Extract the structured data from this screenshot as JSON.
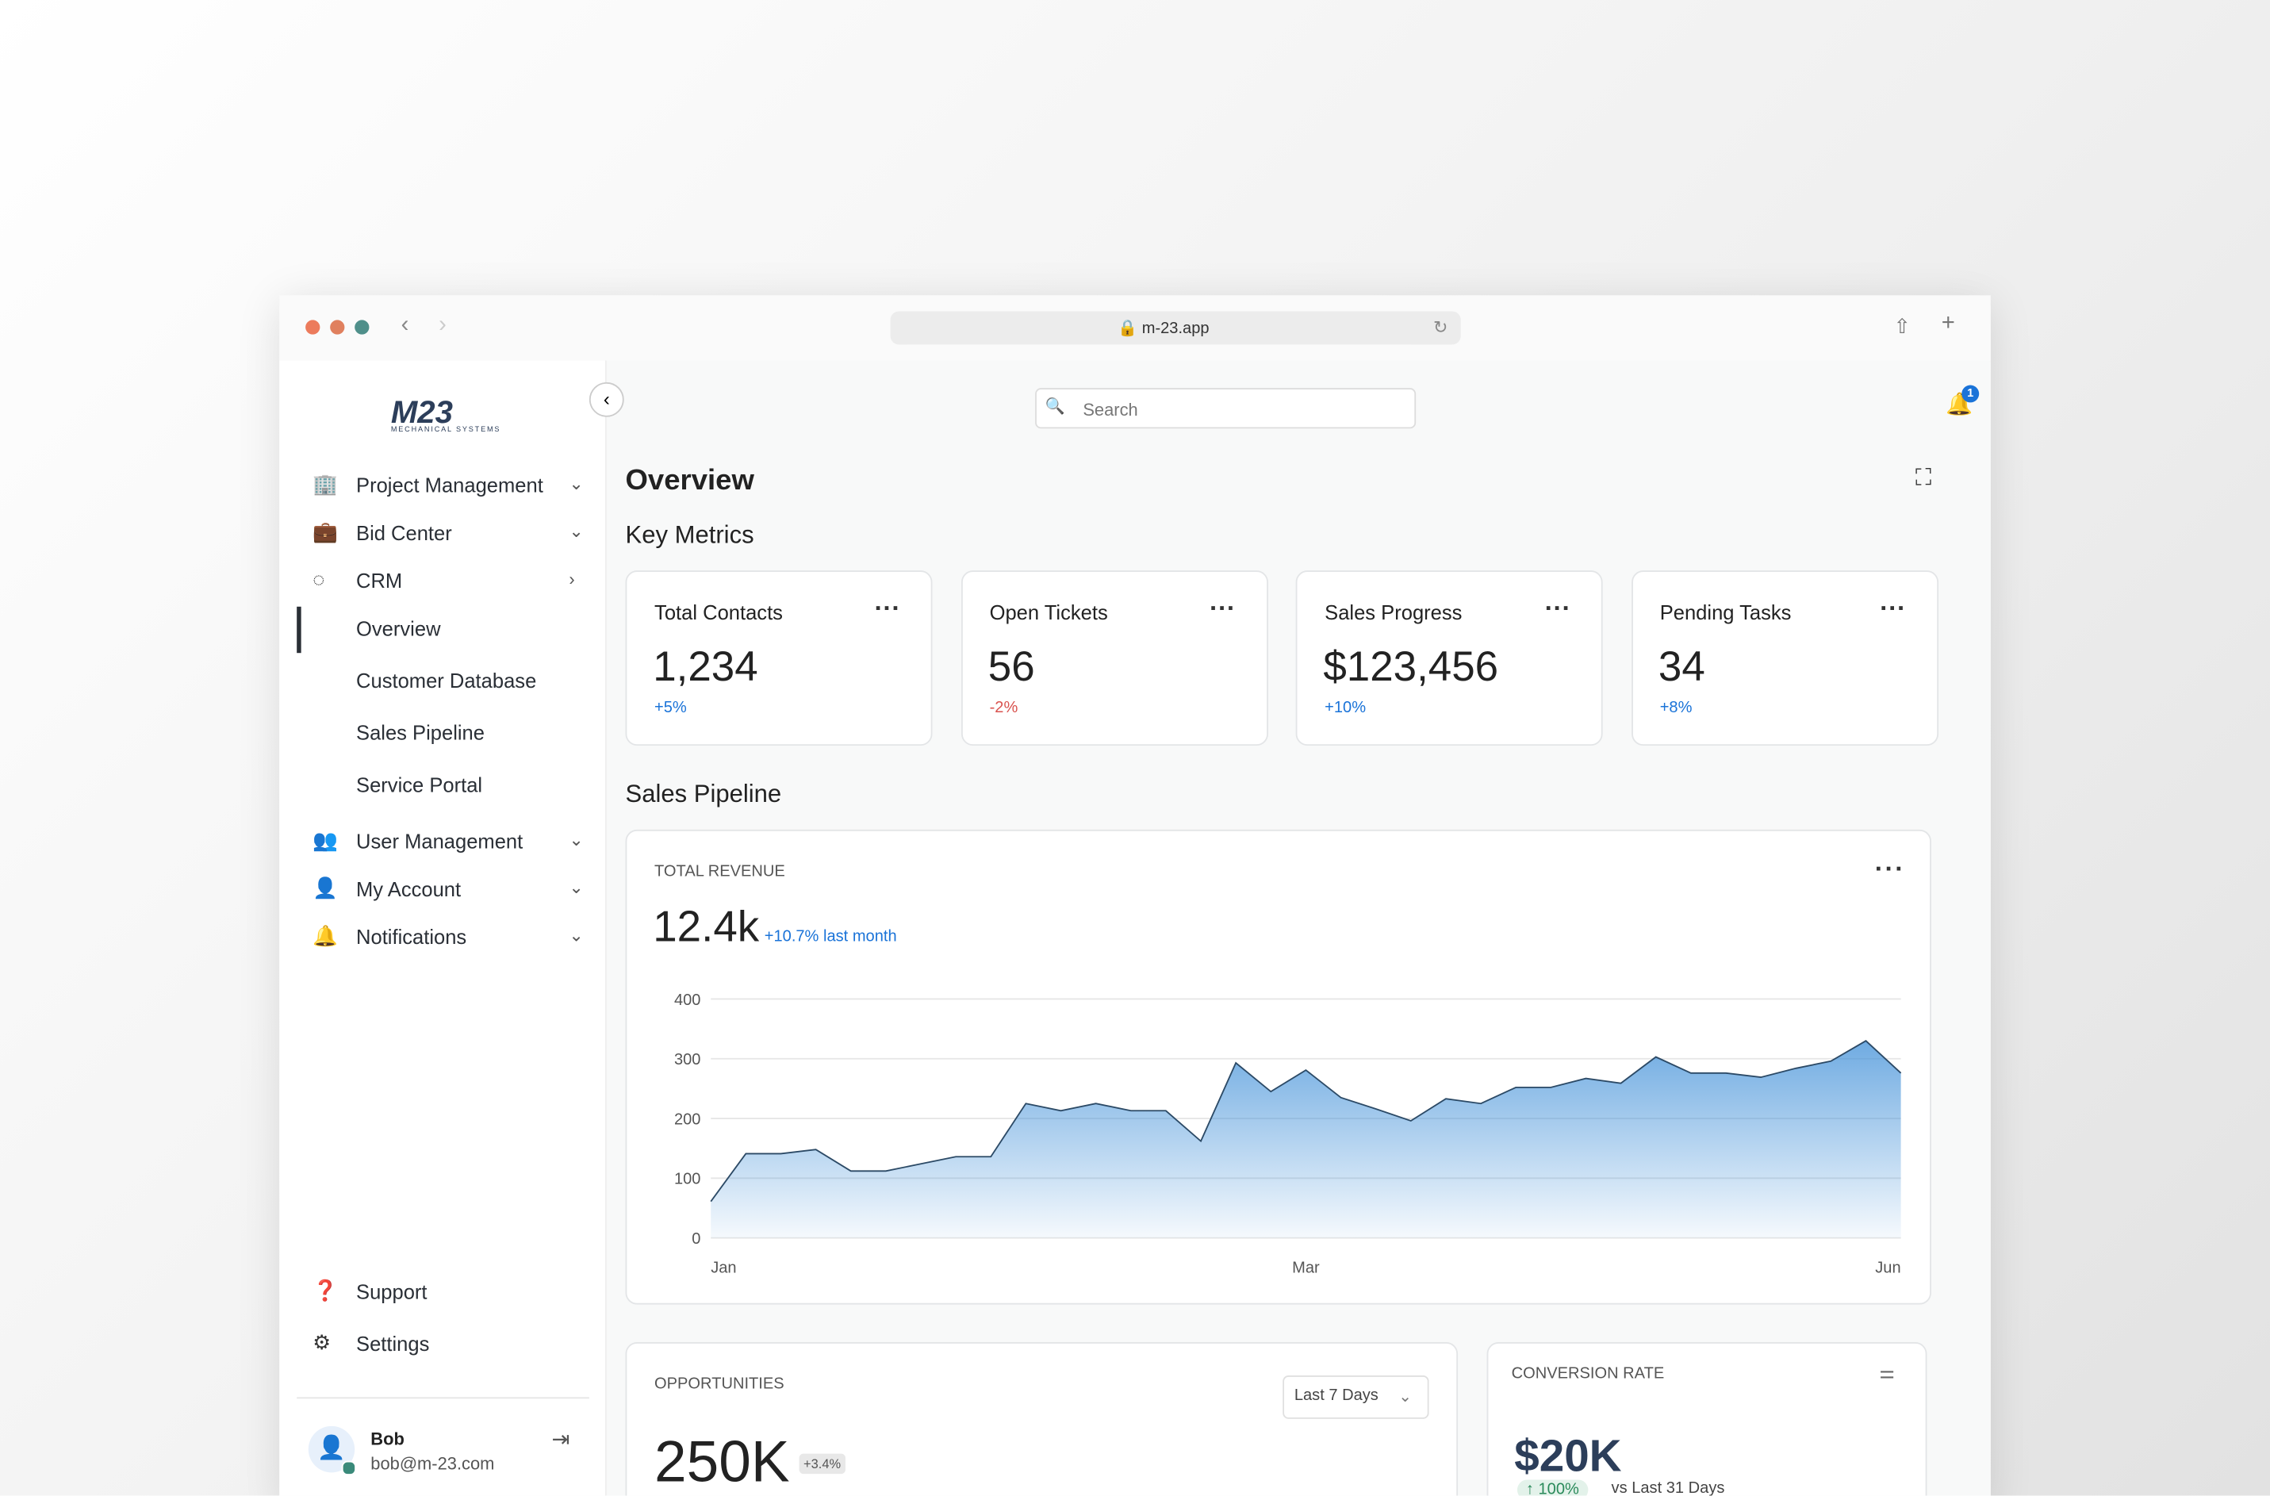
{
  "browser": {
    "url": "m-23.app"
  },
  "sidebar": {
    "logo": "M23",
    "logo_subtitle": "MECHANICAL SYSTEMS",
    "nav": [
      "Project Management",
      "Bid Center",
      "CRM"
    ],
    "crm_sub": [
      "Overview",
      "Customer Database",
      "Sales Pipeline",
      "Service Portal"
    ],
    "nav2": [
      "User Management",
      "My Account",
      "Notifications"
    ],
    "footer_nav": [
      "Support",
      "Settings"
    ],
    "user": {
      "name": "Bob",
      "email": "bob@m-23.com"
    }
  },
  "header": {
    "search_placeholder": "Search",
    "notification_count": "1"
  },
  "page": {
    "title": "Overview",
    "key_metrics_title": "Key Metrics",
    "metrics": [
      {
        "label": "Total Contacts",
        "value": "1,234",
        "change": "+5%"
      },
      {
        "label": "Open Tickets",
        "value": "56",
        "change": "-2%"
      },
      {
        "label": "Sales Progress",
        "value": "$123,456",
        "change": "+10%"
      },
      {
        "label": "Pending Tasks",
        "value": "34",
        "change": "+8%"
      }
    ],
    "sales_pipeline_title": "Sales Pipeline"
  },
  "revenue": {
    "label": "TOTAL REVENUE",
    "value": "12.4k",
    "change": "+10.7% last month",
    "chart_data": {
      "type": "area",
      "color": "#3f8fd8",
      "grid": true,
      "ylim": [
        0,
        400
      ],
      "yticks": [
        0,
        100,
        200,
        300,
        400
      ],
      "categories": [
        "Jan",
        null,
        null,
        null,
        null,
        null,
        null,
        null,
        null,
        null,
        null,
        null,
        null,
        null,
        null,
        null,
        null,
        "Mar",
        null,
        null,
        null,
        null,
        null,
        null,
        null,
        null,
        null,
        null,
        null,
        null,
        null,
        null,
        null,
        null,
        "Jun"
      ],
      "values": [
        61,
        141,
        141,
        148,
        112,
        112,
        124,
        136,
        136,
        225,
        213,
        225,
        213,
        213,
        162,
        293,
        245,
        281,
        235,
        216,
        196,
        233,
        225,
        252,
        252,
        267,
        259,
        303,
        276,
        276,
        269,
        284,
        296,
        330,
        276
      ]
    }
  },
  "opportunities": {
    "label": "OPPORTUNITIES",
    "filter": "Last 7 Days",
    "value": "250K",
    "change": "+3.4%"
  },
  "conversion": {
    "label": "CONVERSION RATE",
    "value": "$20K",
    "change": "100%",
    "comparison": "vs Last 31 Days"
  }
}
